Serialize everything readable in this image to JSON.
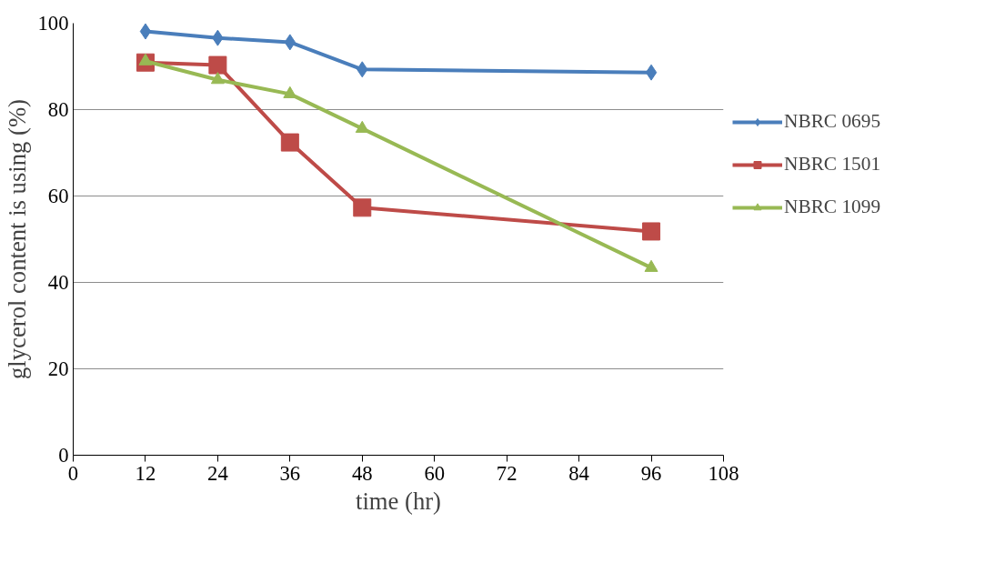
{
  "chart_data": {
    "type": "line",
    "xlabel": "time (hr)",
    "ylabel": "glycerol content is using (%)",
    "x": [
      12,
      24,
      36,
      48,
      96
    ],
    "series": [
      {
        "name": "NBRC 0695",
        "color": "#4a7ebb",
        "marker": "diamond",
        "values": [
          98.1,
          96.6,
          95.6,
          89.3,
          88.6
        ]
      },
      {
        "name": "NBRC 1501",
        "color": "#be4b48",
        "marker": "square",
        "values": [
          90.9,
          90.3,
          72.4,
          57.3,
          51.8
        ]
      },
      {
        "name": "NBRC 1099",
        "color": "#98b954",
        "marker": "triangle",
        "values": [
          91.2,
          86.9,
          83.6,
          75.6,
          43.4
        ]
      }
    ],
    "xlim": [
      0,
      108
    ],
    "xticks": [
      0,
      12,
      24,
      36,
      48,
      60,
      72,
      84,
      96,
      108
    ],
    "ylim": [
      0,
      100
    ],
    "yticks": [
      0,
      20,
      40,
      60,
      80,
      100
    ],
    "grid": "y",
    "legend": "right",
    "line_style": "solid"
  }
}
